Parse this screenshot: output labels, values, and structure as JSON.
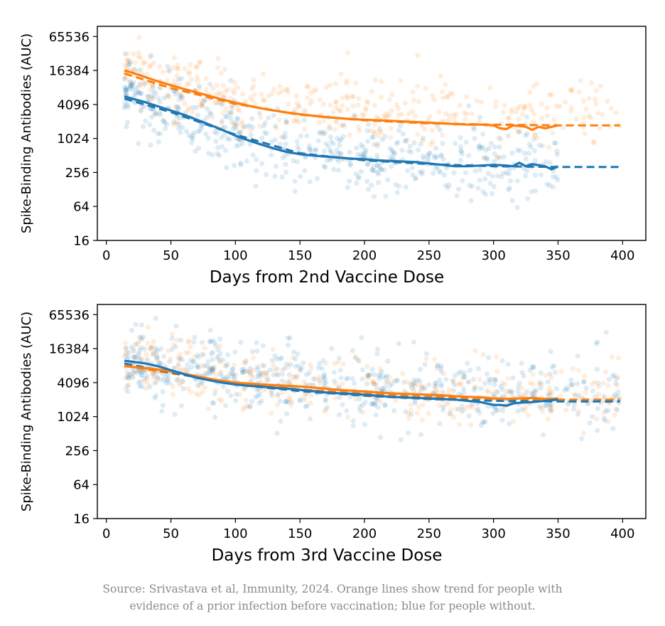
{
  "colors": {
    "orange": "#ff7f0e",
    "blue": "#1f77b4"
  },
  "caption": {
    "line1": "Source: Srivastava et al, Immunity, 2024. Orange lines show trend for people with",
    "line2": "evidence of a prior infection before vaccination; blue for people without."
  },
  "chart_data": [
    {
      "type": "scatter",
      "xlabel": "Days from 2nd Vaccine Dose",
      "ylabel": "Spike-Binding Antibodies (AUC)",
      "xlim": [
        -7,
        418
      ],
      "ylim_log2": [
        4,
        16.6
      ],
      "xticks": [
        0,
        50,
        100,
        150,
        200,
        250,
        300,
        350,
        400
      ],
      "yticks": [
        16,
        64,
        256,
        1024,
        4096,
        16384,
        65536
      ],
      "ytick_labels": [
        "16",
        "64",
        "256",
        "1024",
        "4096",
        "16384",
        "65536"
      ],
      "series": [
        {
          "name": "Prior infection",
          "color": "orange",
          "trend": {
            "x": [
              14,
              20,
              30,
              40,
              50,
              60,
              70,
              80,
              90,
              100,
              110,
              120,
              130,
              140,
              150,
              160,
              170,
              180,
              190,
              200,
              210,
              220,
              230,
              240,
              250,
              260,
              270,
              280,
              290,
              300,
              305,
              310,
              315,
              320,
              325,
              330,
              335,
              340,
              350
            ],
            "y": [
              16384,
              15000,
              12500,
              10500,
              9000,
              7700,
              6700,
              5800,
              5000,
              4400,
              3900,
              3500,
              3200,
              2950,
              2750,
              2600,
              2450,
              2350,
              2250,
              2200,
              2150,
              2100,
              2050,
              2000,
              1950,
              1900,
              1850,
              1800,
              1800,
              1750,
              1550,
              1500,
              1750,
              1700,
              1650,
              1450,
              1650,
              1550,
              1750
            ]
          },
          "fit": {
            "x": [
              14,
              50,
              100,
              150,
              200,
              250,
              300,
              350,
              398
            ],
            "y": [
              14500,
              8000,
              4200,
              2700,
              2150,
              1900,
              1800,
              1750,
              1750
            ]
          },
          "scatter_center": [
            [
              14,
              14000
            ],
            [
              50,
              8500
            ],
            [
              100,
              5200
            ],
            [
              150,
              3800
            ],
            [
              200,
              3200
            ],
            [
              250,
              2800
            ],
            [
              300,
              2700
            ],
            [
              350,
              3000
            ],
            [
              398,
              3200
            ]
          ],
          "scatter_spread_log2": 1.35,
          "n_points": 420
        },
        {
          "name": "No prior infection",
          "color": "blue",
          "trend": {
            "x": [
              14,
              20,
              30,
              40,
              50,
              60,
              70,
              80,
              90,
              100,
              110,
              120,
              130,
              140,
              150,
              160,
              170,
              180,
              190,
              200,
              210,
              220,
              230,
              240,
              250,
              260,
              270,
              280,
              290,
              300,
              310,
              315,
              320,
              325,
              330,
              340,
              345,
              350
            ],
            "y": [
              5700,
              5200,
              4500,
              3800,
              3200,
              2700,
              2200,
              1800,
              1450,
              1150,
              950,
              800,
              680,
              590,
              540,
              510,
              490,
              470,
              450,
              440,
              420,
              410,
              400,
              390,
              370,
              350,
              330,
              330,
              340,
              350,
              340,
              330,
              380,
              330,
              360,
              330,
              290,
              330
            ]
          },
          "fit": {
            "x": [
              14,
              50,
              100,
              150,
              200,
              250,
              300,
              350,
              398
            ],
            "y": [
              5200,
              3000,
              1200,
              560,
              420,
              360,
              330,
              320,
              320
            ]
          },
          "scatter_center": [
            [
              14,
              7000
            ],
            [
              50,
              3500
            ],
            [
              100,
              1300
            ],
            [
              150,
              650
            ],
            [
              200,
              500
            ],
            [
              250,
              420
            ],
            [
              300,
              420
            ],
            [
              350,
              380
            ]
          ],
          "scatter_spread_log2": 1.45,
          "n_points": 560
        }
      ]
    },
    {
      "type": "scatter",
      "xlabel": "Days from 3rd Vaccine Dose",
      "ylabel": "Spike-Binding Antibodies (AUC)",
      "xlim": [
        -7,
        418
      ],
      "ylim_log2": [
        4,
        16.6
      ],
      "xticks": [
        0,
        50,
        100,
        150,
        200,
        250,
        300,
        350,
        400
      ],
      "yticks": [
        16,
        64,
        256,
        1024,
        4096,
        16384,
        65536
      ],
      "ytick_labels": [
        "16",
        "64",
        "256",
        "1024",
        "4096",
        "16384",
        "65536"
      ],
      "series": [
        {
          "name": "Prior infection",
          "color": "orange",
          "trend": {
            "x": [
              14,
              20,
              30,
              40,
              50,
              60,
              70,
              80,
              90,
              100,
              110,
              120,
              130,
              140,
              150,
              160,
              170,
              180,
              190,
              200,
              210,
              220,
              230,
              240,
              250,
              260,
              270,
              280,
              290,
              300,
              310,
              320,
              330,
              340,
              350
            ],
            "y": [
              8000,
              7800,
              7400,
              7000,
              6500,
              5900,
              5300,
              4800,
              4400,
              4100,
              3950,
              3800,
              3700,
              3600,
              3500,
              3350,
              3200,
              3050,
              2950,
              2850,
              2750,
              2650,
              2600,
              2550,
              2500,
              2450,
              2350,
              2300,
              2250,
              2150,
              2100,
              2150,
              2200,
              2100,
              2150
            ]
          },
          "fit": {
            "x": [
              14,
              50,
              100,
              150,
              200,
              250,
              300,
              350,
              398
            ],
            "y": [
              8200,
              6000,
              4100,
              3100,
              2600,
              2300,
              2100,
              2050,
              2050
            ]
          },
          "scatter_center": [
            [
              14,
              10000
            ],
            [
              50,
              7500
            ],
            [
              100,
              5200
            ],
            [
              150,
              4200
            ],
            [
              200,
              3500
            ],
            [
              250,
              3000
            ],
            [
              300,
              2600
            ],
            [
              350,
              2400
            ],
            [
              398,
              2600
            ]
          ],
          "scatter_spread_log2": 1.25,
          "n_points": 360
        },
        {
          "name": "No prior infection",
          "color": "blue",
          "trend": {
            "x": [
              14,
              20,
              30,
              40,
              50,
              60,
              70,
              80,
              90,
              100,
              110,
              120,
              130,
              140,
              150,
              160,
              170,
              180,
              190,
              200,
              210,
              220,
              230,
              240,
              250,
              260,
              270,
              280,
              290,
              300,
              305,
              310,
              315,
              320,
              330,
              340,
              350
            ],
            "y": [
              10000,
              9600,
              9000,
              8000,
              6800,
              5800,
              5000,
              4500,
              4100,
              3800,
              3600,
              3500,
              3300,
              3200,
              3050,
              2900,
              2750,
              2650,
              2600,
              2500,
              2400,
              2300,
              2250,
              2200,
              2150,
              2100,
              2050,
              1950,
              1850,
              1650,
              1650,
              1600,
              1750,
              1800,
              1850,
              1950,
              2050
            ]
          },
          "fit": {
            "x": [
              14,
              50,
              100,
              150,
              200,
              250,
              300,
              350,
              398
            ],
            "y": [
              9000,
              6200,
              3800,
              2900,
              2400,
              2100,
              1950,
              1900,
              1900
            ]
          },
          "scatter_center": [
            [
              14,
              11000
            ],
            [
              50,
              8000
            ],
            [
              100,
              5800
            ],
            [
              150,
              4500
            ],
            [
              200,
              3500
            ],
            [
              250,
              3000
            ],
            [
              300,
              2700
            ],
            [
              350,
              2600
            ],
            [
              398,
              2700
            ]
          ],
          "scatter_spread_log2": 1.35,
          "n_points": 620
        }
      ]
    }
  ]
}
